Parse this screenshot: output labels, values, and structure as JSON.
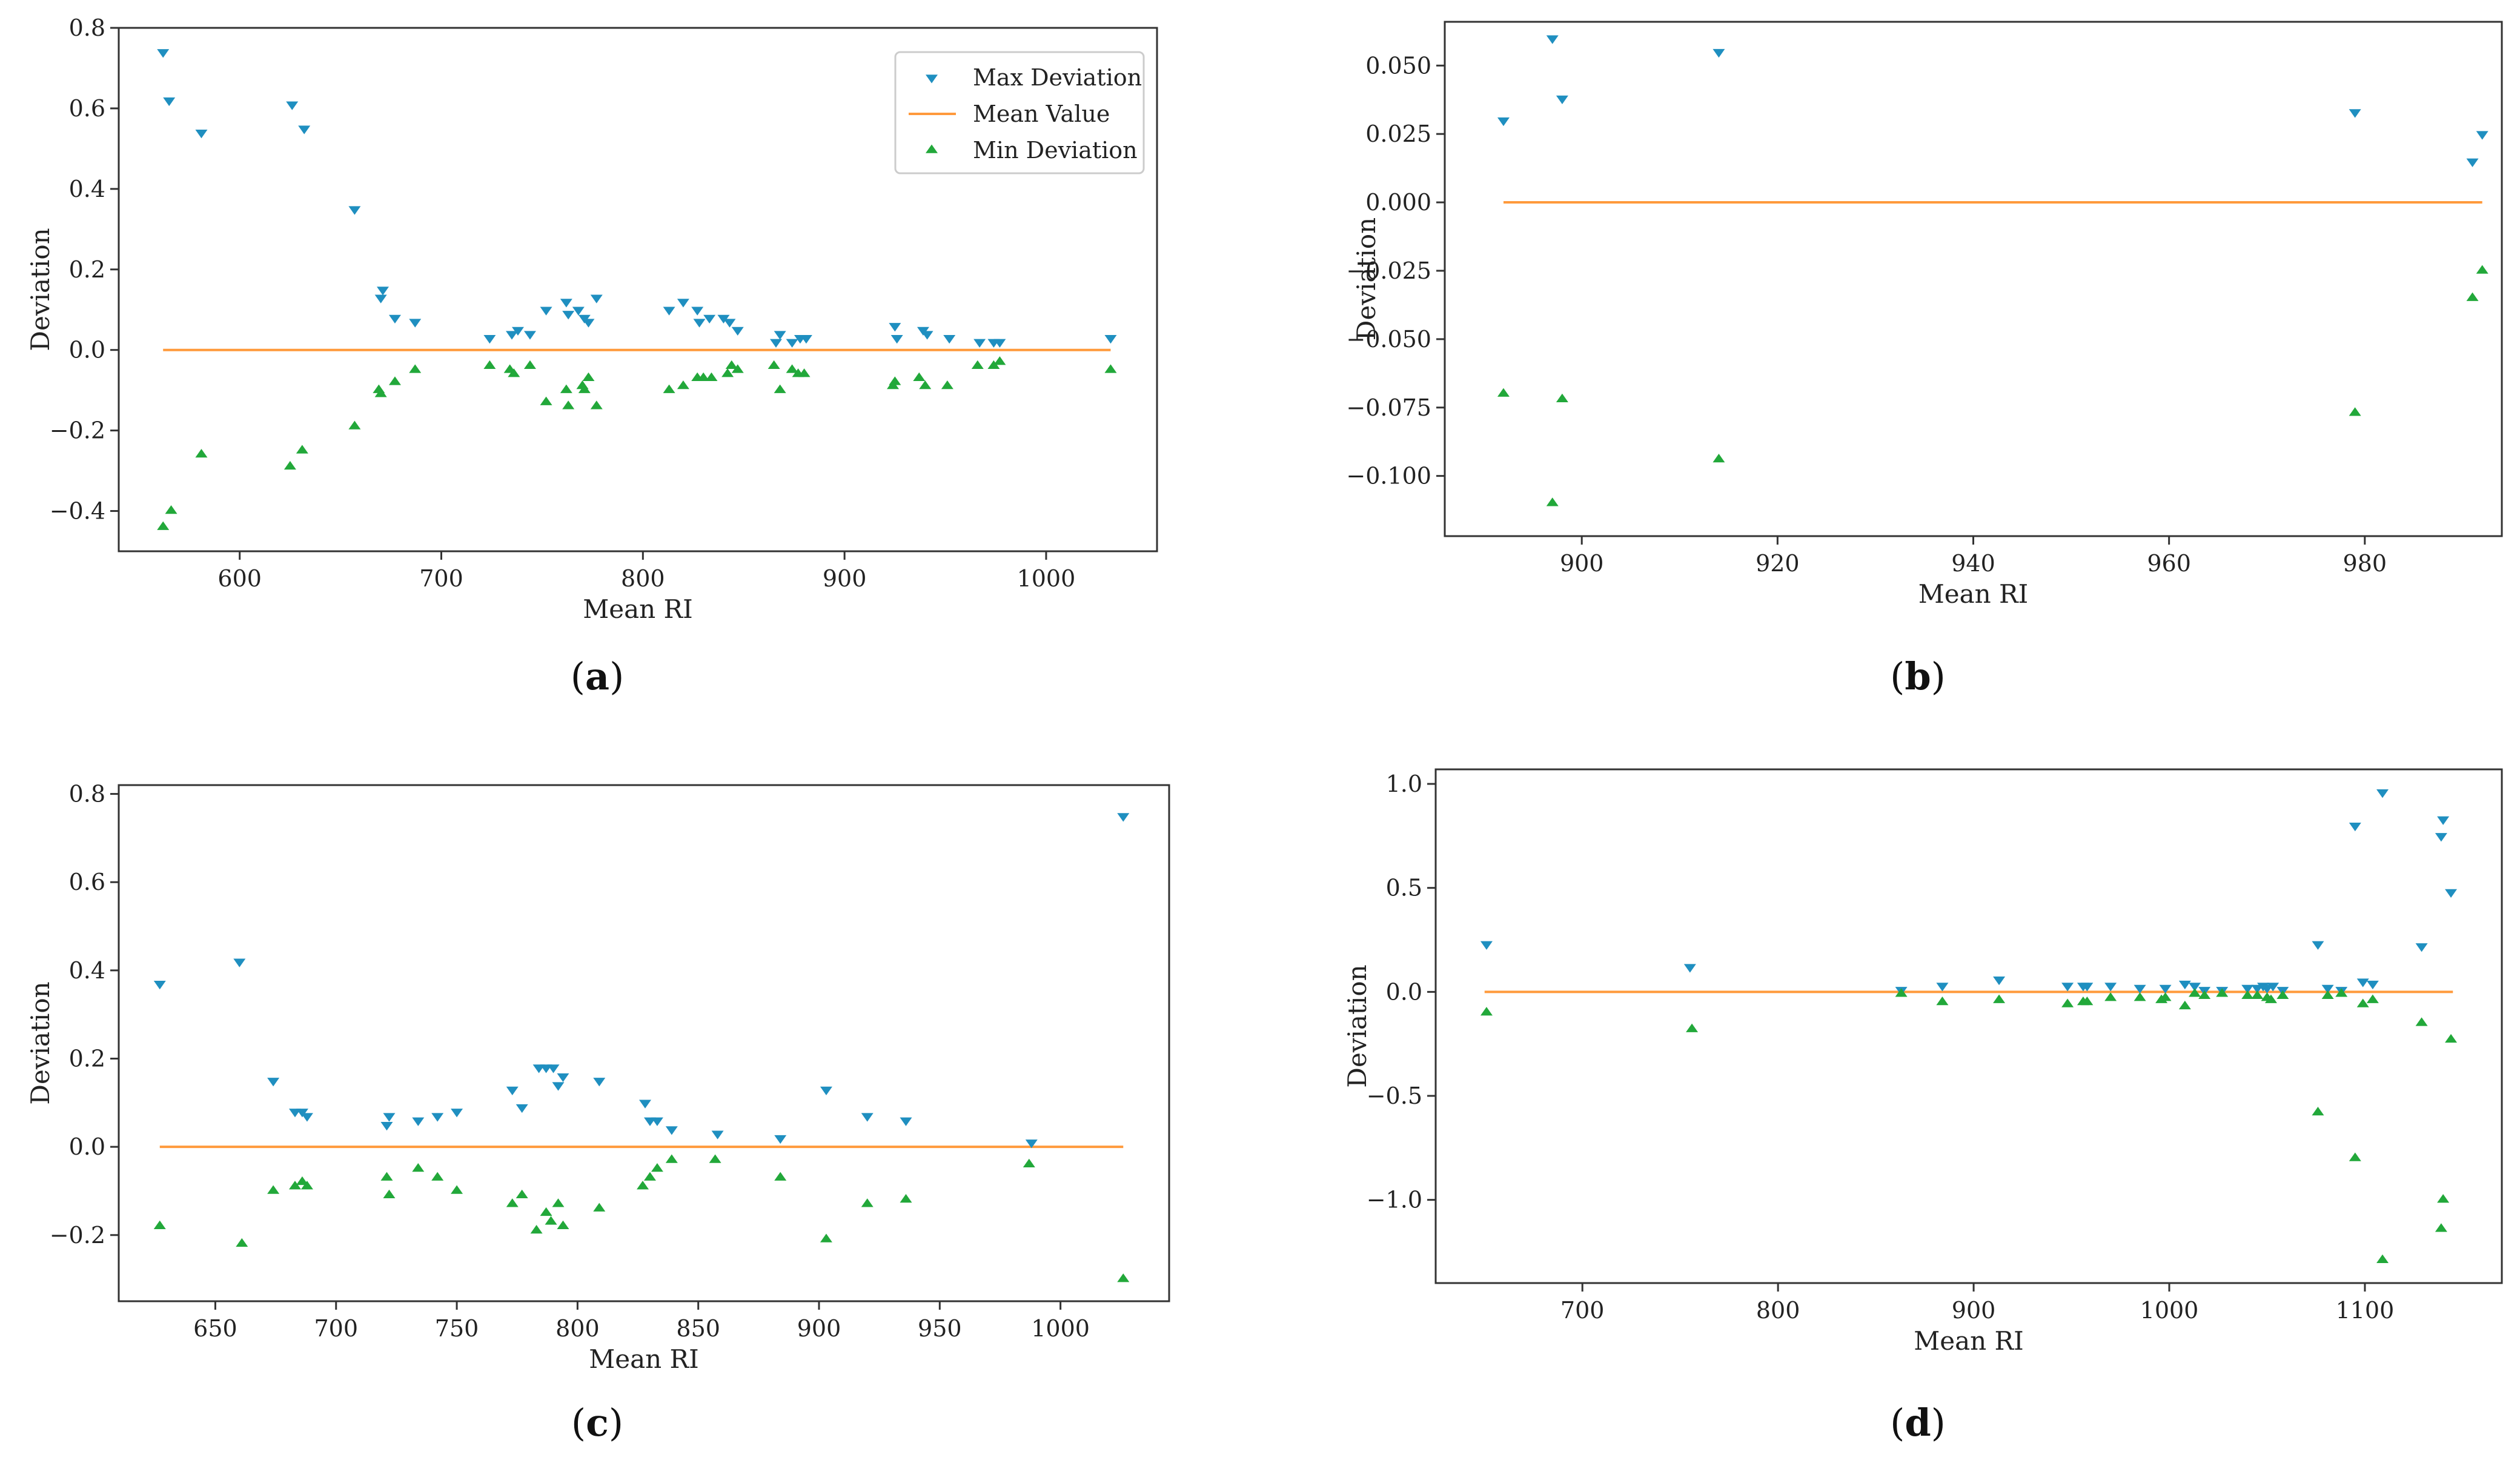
{
  "colors": {
    "max": "#1f8fc0",
    "mean": "#ff9a3c",
    "min": "#22a83a",
    "axis": "#333333"
  },
  "legend": {
    "max_label": "Max Deviation",
    "mean_label": "Mean Value",
    "min_label": "Min Deviation"
  },
  "chart_data": [
    {
      "id": "a",
      "panel_label": "a",
      "type": "scatter",
      "xlabel": "Mean RI",
      "ylabel": "Deviation",
      "xlim": [
        540,
        1055
      ],
      "ylim": [
        -0.5,
        0.8
      ],
      "xticks": [
        600,
        700,
        800,
        900,
        1000
      ],
      "yticks": [
        -0.4,
        -0.2,
        0.0,
        0.2,
        0.4,
        0.6,
        0.8
      ],
      "ytick_labels": [
        "−0.4",
        "−0.2",
        "0.0",
        "0.2",
        "0.4",
        "0.6",
        "0.8"
      ],
      "legend_shown": true,
      "mean_line": {
        "x": [
          562,
          1032
        ],
        "y": 0.0
      },
      "series": [
        {
          "name": "Max Deviation",
          "marker": "triangle-down",
          "x": [
            562,
            565,
            581,
            626,
            632,
            657,
            670,
            671,
            677,
            687,
            724,
            735,
            738,
            744,
            752,
            762,
            763,
            768,
            771,
            773,
            777,
            813,
            820,
            827,
            828,
            833,
            840,
            843,
            847,
            866,
            868,
            874,
            878,
            881,
            925,
            926,
            939,
            941,
            952,
            967,
            974,
            977,
            1032
          ],
          "y": [
            0.74,
            0.62,
            0.54,
            0.61,
            0.55,
            0.35,
            0.13,
            0.15,
            0.08,
            0.07,
            0.03,
            0.04,
            0.05,
            0.04,
            0.1,
            0.12,
            0.09,
            0.1,
            0.08,
            0.07,
            0.13,
            0.1,
            0.12,
            0.1,
            0.07,
            0.08,
            0.08,
            0.07,
            0.05,
            0.02,
            0.04,
            0.02,
            0.03,
            0.03,
            0.06,
            0.03,
            0.05,
            0.04,
            0.03,
            0.02,
            0.02,
            0.02,
            0.03
          ]
        },
        {
          "name": "Min Deviation",
          "marker": "triangle-up",
          "x": [
            562,
            566,
            581,
            625,
            631,
            657,
            669,
            670,
            677,
            687,
            724,
            734,
            736,
            744,
            752,
            762,
            763,
            770,
            771,
            773,
            777,
            813,
            820,
            827,
            830,
            834,
            842,
            844,
            847,
            865,
            868,
            874,
            877,
            880,
            924,
            925,
            937,
            940,
            951,
            966,
            974,
            977,
            1032
          ],
          "y": [
            -0.44,
            -0.4,
            -0.26,
            -0.29,
            -0.25,
            -0.19,
            -0.1,
            -0.11,
            -0.08,
            -0.05,
            -0.04,
            -0.05,
            -0.06,
            -0.04,
            -0.13,
            -0.1,
            -0.14,
            -0.09,
            -0.1,
            -0.07,
            -0.14,
            -0.1,
            -0.09,
            -0.07,
            -0.07,
            -0.07,
            -0.06,
            -0.04,
            -0.05,
            -0.04,
            -0.1,
            -0.05,
            -0.06,
            -0.06,
            -0.09,
            -0.08,
            -0.07,
            -0.09,
            -0.09,
            -0.04,
            -0.04,
            -0.03,
            -0.05
          ]
        }
      ]
    },
    {
      "id": "b",
      "panel_label": "b",
      "type": "scatter",
      "xlabel": "Mean RI",
      "ylabel": "Deviation",
      "xlim": [
        886,
        994
      ],
      "ylim": [
        -0.122,
        0.066
      ],
      "xticks": [
        900,
        920,
        940,
        960,
        980
      ],
      "yticks": [
        -0.1,
        -0.075,
        -0.05,
        -0.025,
        0.0,
        0.025,
        0.05
      ],
      "ytick_labels": [
        "−0.100",
        "−0.075",
        "−0.050",
        "−0.025",
        "0.000",
        "0.025",
        "0.050"
      ],
      "legend_shown": false,
      "mean_line": {
        "x": [
          892,
          992
        ],
        "y": 0.0
      },
      "series": [
        {
          "name": "Max Deviation",
          "marker": "triangle-down",
          "x": [
            892,
            897,
            898,
            914,
            979,
            991,
            992
          ],
          "y": [
            0.03,
            0.06,
            0.038,
            0.055,
            0.033,
            0.015,
            0.025
          ]
        },
        {
          "name": "Min Deviation",
          "marker": "triangle-up",
          "x": [
            892,
            897,
            898,
            914,
            979,
            991,
            992
          ],
          "y": [
            -0.07,
            -0.11,
            -0.072,
            -0.094,
            -0.077,
            -0.035,
            -0.025
          ]
        }
      ]
    },
    {
      "id": "c",
      "panel_label": "c",
      "type": "scatter",
      "xlabel": "Mean RI",
      "ylabel": "Deviation",
      "xlim": [
        610,
        1045
      ],
      "ylim": [
        -0.35,
        0.82
      ],
      "xticks": [
        650,
        700,
        750,
        800,
        850,
        900,
        950,
        1000
      ],
      "yticks": [
        -0.2,
        0.0,
        0.2,
        0.4,
        0.6,
        0.8
      ],
      "ytick_labels": [
        "−0.2",
        "0.0",
        "0.2",
        "0.4",
        "0.6",
        "0.8"
      ],
      "legend_shown": false,
      "mean_line": {
        "x": [
          627,
          1026
        ],
        "y": 0.0
      },
      "series": [
        {
          "name": "Max Deviation",
          "marker": "triangle-down",
          "x": [
            627,
            660,
            674,
            683,
            686,
            688,
            721,
            722,
            734,
            742,
            750,
            773,
            777,
            784,
            787,
            790,
            792,
            794,
            809,
            828,
            830,
            833,
            839,
            858,
            884,
            903,
            920,
            936,
            988,
            1026
          ],
          "y": [
            0.37,
            0.42,
            0.15,
            0.08,
            0.08,
            0.07,
            0.05,
            0.07,
            0.06,
            0.07,
            0.08,
            0.13,
            0.09,
            0.18,
            0.18,
            0.18,
            0.14,
            0.16,
            0.15,
            0.1,
            0.06,
            0.06,
            0.04,
            0.03,
            0.02,
            0.13,
            0.07,
            0.06,
            0.01,
            0.75
          ]
        },
        {
          "name": "Min Deviation",
          "marker": "triangle-up",
          "x": [
            627,
            661,
            674,
            683,
            686,
            688,
            721,
            722,
            734,
            742,
            750,
            773,
            777,
            783,
            787,
            789,
            792,
            794,
            809,
            827,
            830,
            833,
            839,
            857,
            884,
            903,
            920,
            936,
            987,
            1026
          ],
          "y": [
            -0.18,
            -0.22,
            -0.1,
            -0.09,
            -0.08,
            -0.09,
            -0.07,
            -0.11,
            -0.05,
            -0.07,
            -0.1,
            -0.13,
            -0.11,
            -0.19,
            -0.15,
            -0.17,
            -0.13,
            -0.18,
            -0.14,
            -0.09,
            -0.07,
            -0.05,
            -0.03,
            -0.03,
            -0.07,
            -0.21,
            -0.13,
            -0.12,
            -0.04,
            -0.3
          ]
        }
      ]
    },
    {
      "id": "d",
      "panel_label": "d",
      "type": "scatter",
      "xlabel": "Mean RI",
      "ylabel": "Deviation",
      "xlim": [
        625,
        1170
      ],
      "ylim": [
        -1.4,
        1.07
      ],
      "xticks": [
        700,
        800,
        900,
        1000,
        1100
      ],
      "yticks": [
        -1.0,
        -0.5,
        0.0,
        0.5,
        1.0
      ],
      "ytick_labels": [
        "−1.0",
        "−0.5",
        "0.0",
        "0.5",
        "1.0"
      ],
      "legend_shown": false,
      "mean_line": {
        "x": [
          650,
          1145
        ],
        "y": 0.0
      },
      "series": [
        {
          "name": "Max Deviation",
          "marker": "triangle-down",
          "x": [
            651,
            755,
            863,
            884,
            913,
            948,
            956,
            958,
            970,
            985,
            998,
            1008,
            1013,
            1018,
            1027,
            1040,
            1045,
            1048,
            1050,
            1053,
            1058,
            1076,
            1081,
            1088,
            1095,
            1099,
            1104,
            1109,
            1129,
            1139,
            1140,
            1144
          ],
          "y": [
            0.23,
            0.12,
            0.01,
            0.03,
            0.06,
            0.03,
            0.03,
            0.03,
            0.03,
            0.02,
            0.02,
            0.04,
            0.03,
            0.01,
            0.01,
            0.02,
            0.02,
            0.03,
            0.02,
            0.03,
            0.01,
            0.23,
            0.02,
            0.01,
            0.8,
            0.05,
            0.04,
            0.96,
            0.22,
            0.75,
            0.83,
            0.48
          ]
        },
        {
          "name": "Min Deviation",
          "marker": "triangle-up",
          "x": [
            651,
            756,
            863,
            884,
            913,
            948,
            956,
            958,
            970,
            985,
            996,
            998,
            1008,
            1013,
            1018,
            1027,
            1040,
            1045,
            1050,
            1052,
            1058,
            1076,
            1081,
            1088,
            1095,
            1099,
            1104,
            1109,
            1129,
            1139,
            1140,
            1144
          ],
          "y": [
            -0.1,
            -0.18,
            -0.01,
            -0.05,
            -0.04,
            -0.06,
            -0.05,
            -0.05,
            -0.03,
            -0.03,
            -0.04,
            -0.03,
            -0.07,
            -0.01,
            -0.02,
            -0.01,
            -0.02,
            -0.02,
            -0.03,
            -0.04,
            -0.02,
            -0.58,
            -0.02,
            -0.01,
            -0.8,
            -0.06,
            -0.04,
            -1.29,
            -0.15,
            -1.14,
            -1.0,
            -0.23
          ]
        }
      ]
    }
  ]
}
